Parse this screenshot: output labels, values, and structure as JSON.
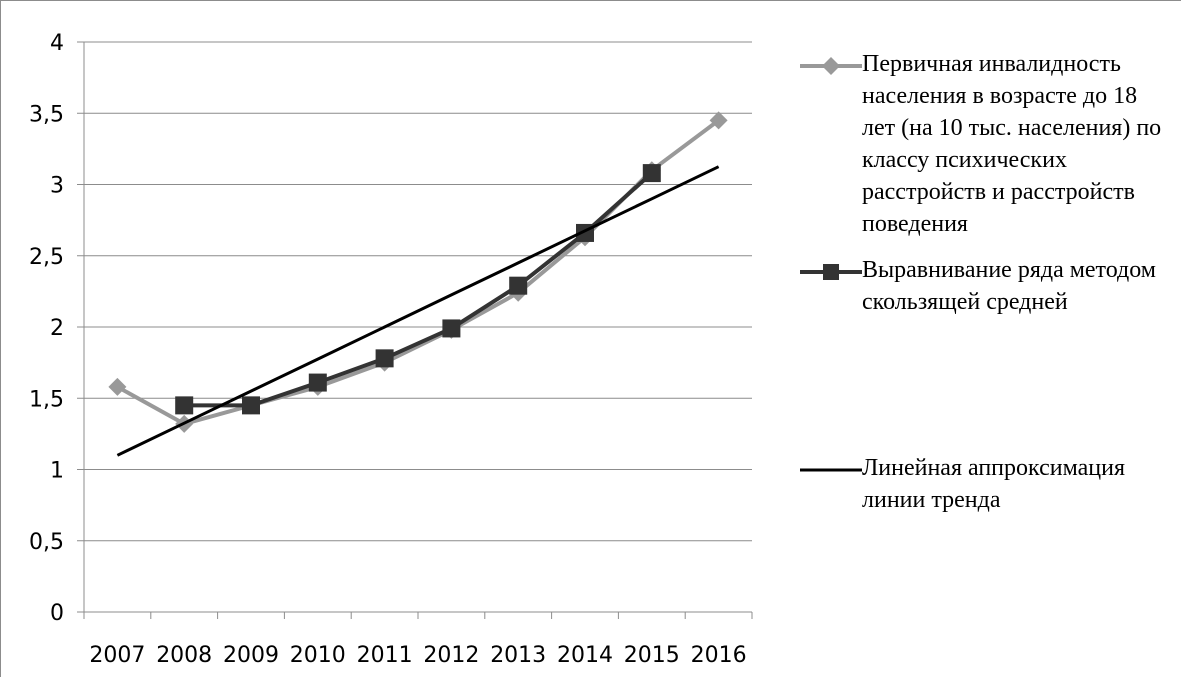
{
  "chart_data": {
    "type": "line",
    "categories": [
      "2007",
      "2008",
      "2009",
      "2010",
      "2011",
      "2012",
      "2013",
      "2014",
      "2015",
      "2016"
    ],
    "ylim": [
      0,
      4
    ],
    "yticks": [
      "0",
      "0,5",
      "1",
      "1,5",
      "2",
      "2,5",
      "3",
      "3,5",
      "4"
    ],
    "grid": true,
    "legend_position": "right",
    "series": [
      {
        "name": "Первичная инвалидность населения в возрасте до 18 лет (на 10 тыс. населения) по классу психических расстройств и расстройств поведения",
        "values": [
          1.58,
          1.32,
          1.45,
          1.58,
          1.75,
          1.98,
          2.24,
          2.63,
          3.1,
          3.45
        ],
        "color": "#999999",
        "marker": "diamond"
      },
      {
        "name": "Выравнивание ряда методом скользящей средней",
        "values": [
          null,
          1.45,
          1.45,
          1.61,
          1.78,
          1.99,
          2.29,
          2.66,
          3.08,
          null
        ],
        "color": "#333333",
        "marker": "square"
      },
      {
        "name": "Линейная аппроксимация линии тренда",
        "values": [
          1.1,
          1.325,
          1.55,
          1.775,
          2.0,
          2.225,
          2.45,
          2.675,
          2.9,
          3.125
        ],
        "color": "#000000",
        "marker": "none"
      }
    ]
  }
}
